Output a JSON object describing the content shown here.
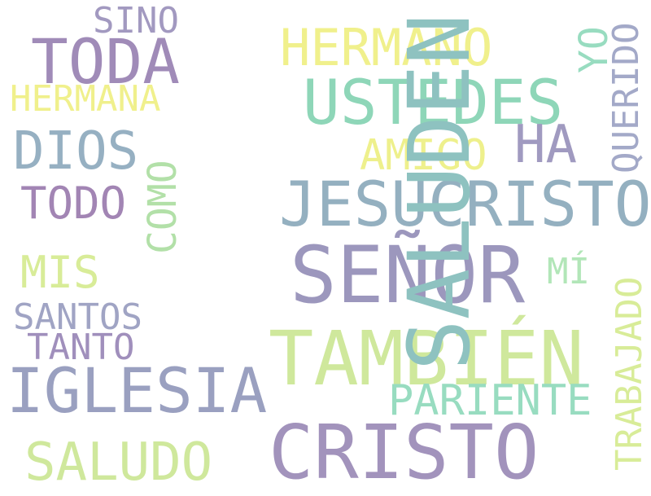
{
  "words": [
    {
      "text": "SALUDEN",
      "color": "#8ec2c0"
    },
    {
      "text": "SEÑOR",
      "color": "#9c97bd"
    },
    {
      "text": "TAMBIÉN",
      "color": "#cfe89c"
    },
    {
      "text": "CRISTO",
      "color": "#a293bc"
    },
    {
      "text": "JESUCRISTO",
      "color": "#94b0c0"
    },
    {
      "text": "USTEDES",
      "color": "#8ed6b8"
    },
    {
      "text": "TODA",
      "color": "#a08bb8"
    },
    {
      "text": "IGLESIA",
      "color": "#9aa0c0"
    },
    {
      "text": "HERMANO",
      "color": "#f0f08c"
    },
    {
      "text": "DIOS",
      "color": "#96b0c2"
    },
    {
      "text": "HA",
      "color": "#a09ac0"
    },
    {
      "text": "SALUDO",
      "color": "#cfe89c"
    },
    {
      "text": "PARIENTE",
      "color": "#98dcc0"
    },
    {
      "text": "AMIGO",
      "color": "#eef08c"
    },
    {
      "text": "TODO",
      "color": "#a285b4"
    },
    {
      "text": "COMO",
      "color": "#b2e0a8"
    },
    {
      "text": "MIS",
      "color": "#d8ec98"
    },
    {
      "text": "SANTOS",
      "color": "#a0a4c4"
    },
    {
      "text": "TANTO",
      "color": "#a08fbc"
    },
    {
      "text": "HERMANA",
      "color": "#f0f08c"
    },
    {
      "text": "SINO",
      "color": "#a299c0"
    },
    {
      "text": "YO",
      "color": "#98dcc0"
    },
    {
      "text": "QUERIDO",
      "color": "#a3a9c8"
    },
    {
      "text": "MÍ",
      "color": "#b2e6b8"
    },
    {
      "text": "TRABAJADO",
      "color": "#d8ec98"
    }
  ]
}
